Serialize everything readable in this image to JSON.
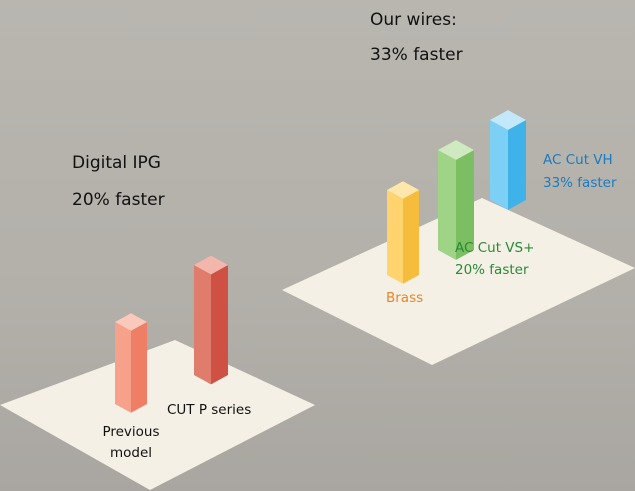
{
  "wires_group": {
    "title": "Our wires:",
    "subtitle": "33% faster",
    "bars": [
      {
        "label": "Brass"
      },
      {
        "label": "AC Cut VS+",
        "note": "20% faster"
      },
      {
        "label": "AC Cut VH",
        "note": "33% faster"
      }
    ]
  },
  "ipg_group": {
    "title": "Digital IPG",
    "subtitle": "20% faster",
    "bars": [
      {
        "label_lines": [
          "Previous",
          "model"
        ]
      },
      {
        "label": "CUT P series"
      }
    ]
  }
}
